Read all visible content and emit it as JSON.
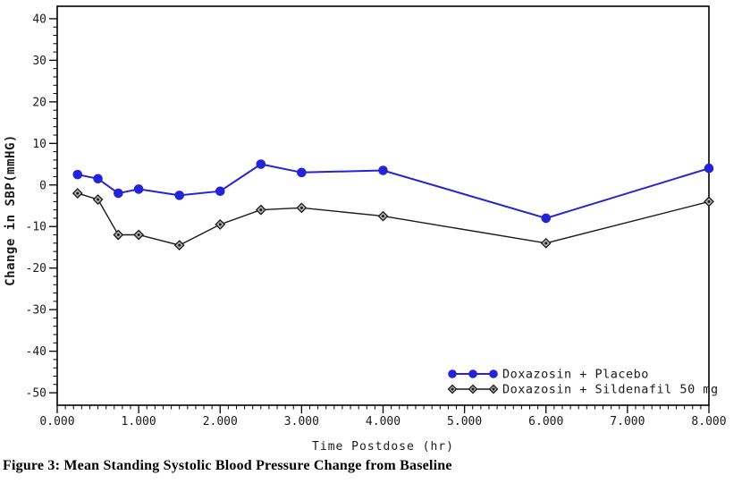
{
  "figure": {
    "caption": "Figure 3: Mean Standing Systolic Blood Pressure Change from Baseline"
  },
  "chart_data": {
    "type": "line",
    "title": "",
    "xlabel": "Time Postdose (hr)",
    "ylabel": "Change in SBP(mmHG)",
    "x": [
      0.25,
      0.5,
      0.75,
      1,
      1.5,
      2,
      2.5,
      3,
      4,
      6,
      8
    ],
    "series": [
      {
        "name": "Doxazosin + Placebo",
        "color": "#2424d6",
        "marker": "circle",
        "values": [
          2.5,
          1.5,
          -2,
          -1,
          -2.5,
          -1.5,
          5,
          3,
          3.5,
          -8,
          4
        ]
      },
      {
        "name": "Doxazosin + Sildenafil 50 mg",
        "color": "#1a1a1a",
        "marker": "diamond",
        "values": [
          -2,
          -3.5,
          -12,
          -12,
          -14.5,
          -9.5,
          -6,
          -5.5,
          -7.5,
          -14,
          -4
        ]
      }
    ],
    "xlim": [
      0,
      8
    ],
    "ylim": [
      -53,
      43
    ],
    "xticks": {
      "values": [
        0,
        1,
        2,
        3,
        4,
        5,
        6,
        7,
        8
      ],
      "labels": [
        "0.000",
        "1.000",
        "2.000",
        "3.000",
        "4.000",
        "5.000",
        "6.000",
        "7.000",
        "8.000"
      ]
    },
    "yticks": {
      "values": [
        40,
        30,
        20,
        10,
        0,
        -10,
        -20,
        -30,
        -40,
        -50
      ],
      "labels": [
        "40",
        "30",
        "20",
        "10",
        "0",
        "-10",
        "-20",
        "-30",
        "-40",
        "-50"
      ]
    },
    "x_minor_step": 0.1,
    "y_minor_step": 2,
    "grid": false,
    "legend_position": "inside-bottom-right",
    "frame_color": "#000000",
    "text_color": "#1a1a1a"
  }
}
